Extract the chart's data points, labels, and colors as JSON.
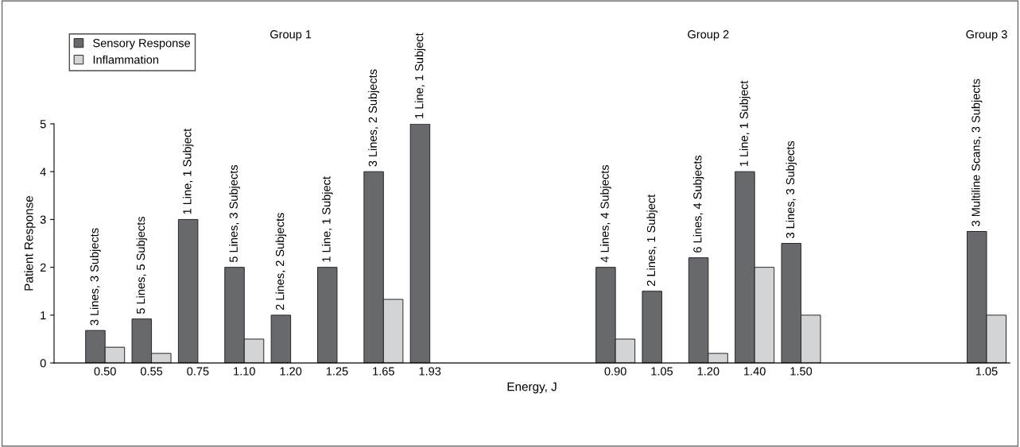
{
  "chart_data": {
    "type": "bar",
    "xlabel": "Energy, J",
    "ylabel": "Patient Response",
    "categories": [
      "0.50",
      "0.55",
      "0.75",
      "1.10",
      "1.20",
      "1.25",
      "1.65",
      "1.93",
      null,
      null,
      null,
      "0.90",
      "1.05",
      "1.20",
      "1.40",
      "1.50",
      null,
      null,
      null,
      "1.05"
    ],
    "series": [
      {
        "name": "Sensory Response",
        "color": "#68696d",
        "values": [
          0.68,
          0.92,
          3,
          2,
          1,
          2,
          4,
          5,
          null,
          null,
          null,
          2,
          1.5,
          2.2,
          4,
          2.5,
          null,
          null,
          null,
          2.75
        ]
      },
      {
        "name": "Inflammation",
        "color": "#d3d4d6",
        "values": [
          0.33,
          0.2,
          null,
          0.5,
          null,
          null,
          1.33,
          null,
          null,
          null,
          null,
          0.5,
          null,
          0.2,
          2,
          1,
          null,
          null,
          null,
          1
        ]
      }
    ],
    "ylim": [
      0,
      5
    ],
    "yticks": [
      0,
      1,
      2,
      3,
      4,
      5
    ],
    "grid": false,
    "legend": "top left",
    "annotations": [
      "Group 1",
      "Group 2",
      "Group 3",
      {
        "text": "3 Lines, 3 Subjects",
        "x": "0.50",
        "y": 0.68
      },
      {
        "text": "5 Lines, 5 Subjects",
        "x": "0.55",
        "y": 0.92
      },
      {
        "text": "1 Line, 1 Subject",
        "x": "0.75",
        "y": 3
      },
      {
        "text": "5 Lines, 3 Subjects",
        "x": "1.10",
        "y": 2
      },
      {
        "text": "2 Lines, 2 Subjects",
        "x": "1.20",
        "y": 1
      },
      {
        "text": "1 Line, 1 Subject",
        "x": "1.25",
        "y": 2
      },
      {
        "text": "3 Lines, 2 Subjects",
        "x": "1.65",
        "y": 4
      },
      {
        "text": "1 Line, 1 Subject",
        "x": "1.93",
        "y": 5
      },
      {
        "text": "4 Lines, 4 Subjects",
        "x": "0.90",
        "y": 2
      },
      {
        "text": "2 Lines, 1 Subject",
        "x": "1.05",
        "y": 1.5
      },
      "6 Lines, 4 Subjects",
      {
        "text": "1 Line, 1 Subject",
        "x": "1.40",
        "y": 4
      },
      {
        "text": "3 Lines, 3 Subjects",
        "x": "1.50",
        "y": 2.5
      },
      "3 Multiline Scans, 3 Subjects"
    ]
  }
}
